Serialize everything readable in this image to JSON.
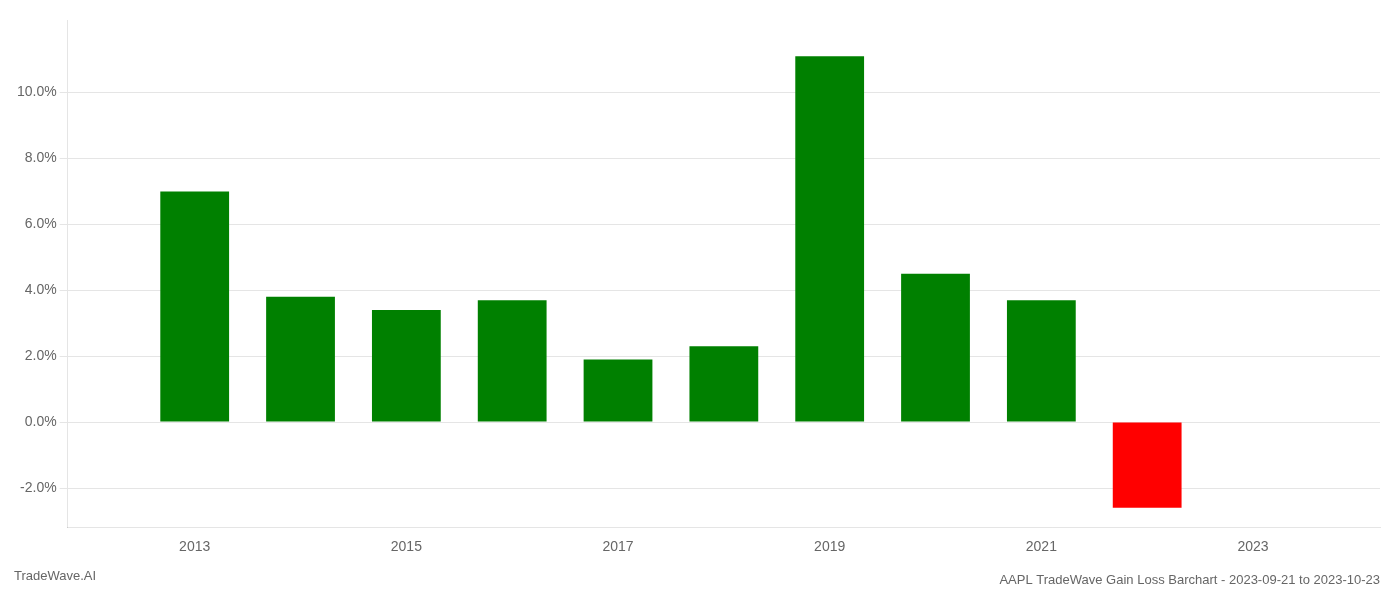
{
  "chart_data": {
    "type": "bar",
    "title": "AAPL TradeWave Gain Loss Barchart - 2023-09-21 to 2023-10-23",
    "annotations": [
      "TradeWave.AI"
    ],
    "x": [
      2013,
      2014,
      2015,
      2016,
      2017,
      2018,
      2019,
      2020,
      2021,
      2022
    ],
    "values": [
      0.07,
      0.038,
      0.034,
      0.037,
      0.019,
      0.023,
      0.111,
      0.045,
      0.037,
      -0.026
    ],
    "colors": [
      "#008000",
      "#008000",
      "#008000",
      "#008000",
      "#008000",
      "#008000",
      "#008000",
      "#008000",
      "#008000",
      "#ff0000"
    ],
    "xlim": [
      2011.8,
      2024.2
    ],
    "xticks": [
      2013,
      2015,
      2017,
      2019,
      2021,
      2023
    ],
    "ylim": [
      -0.032,
      0.122
    ],
    "yticks": [
      {
        "value": -0.02,
        "label": "-2.0%"
      },
      {
        "value": 0.0,
        "label": "0.0%"
      },
      {
        "value": 0.02,
        "label": "2.0%"
      },
      {
        "value": 0.04,
        "label": "4.0%"
      },
      {
        "value": 0.06,
        "label": "6.0%"
      },
      {
        "value": 0.08,
        "label": "8.0%"
      },
      {
        "value": 0.1,
        "label": "10.0%"
      }
    ],
    "grid": "y",
    "legend": false
  }
}
